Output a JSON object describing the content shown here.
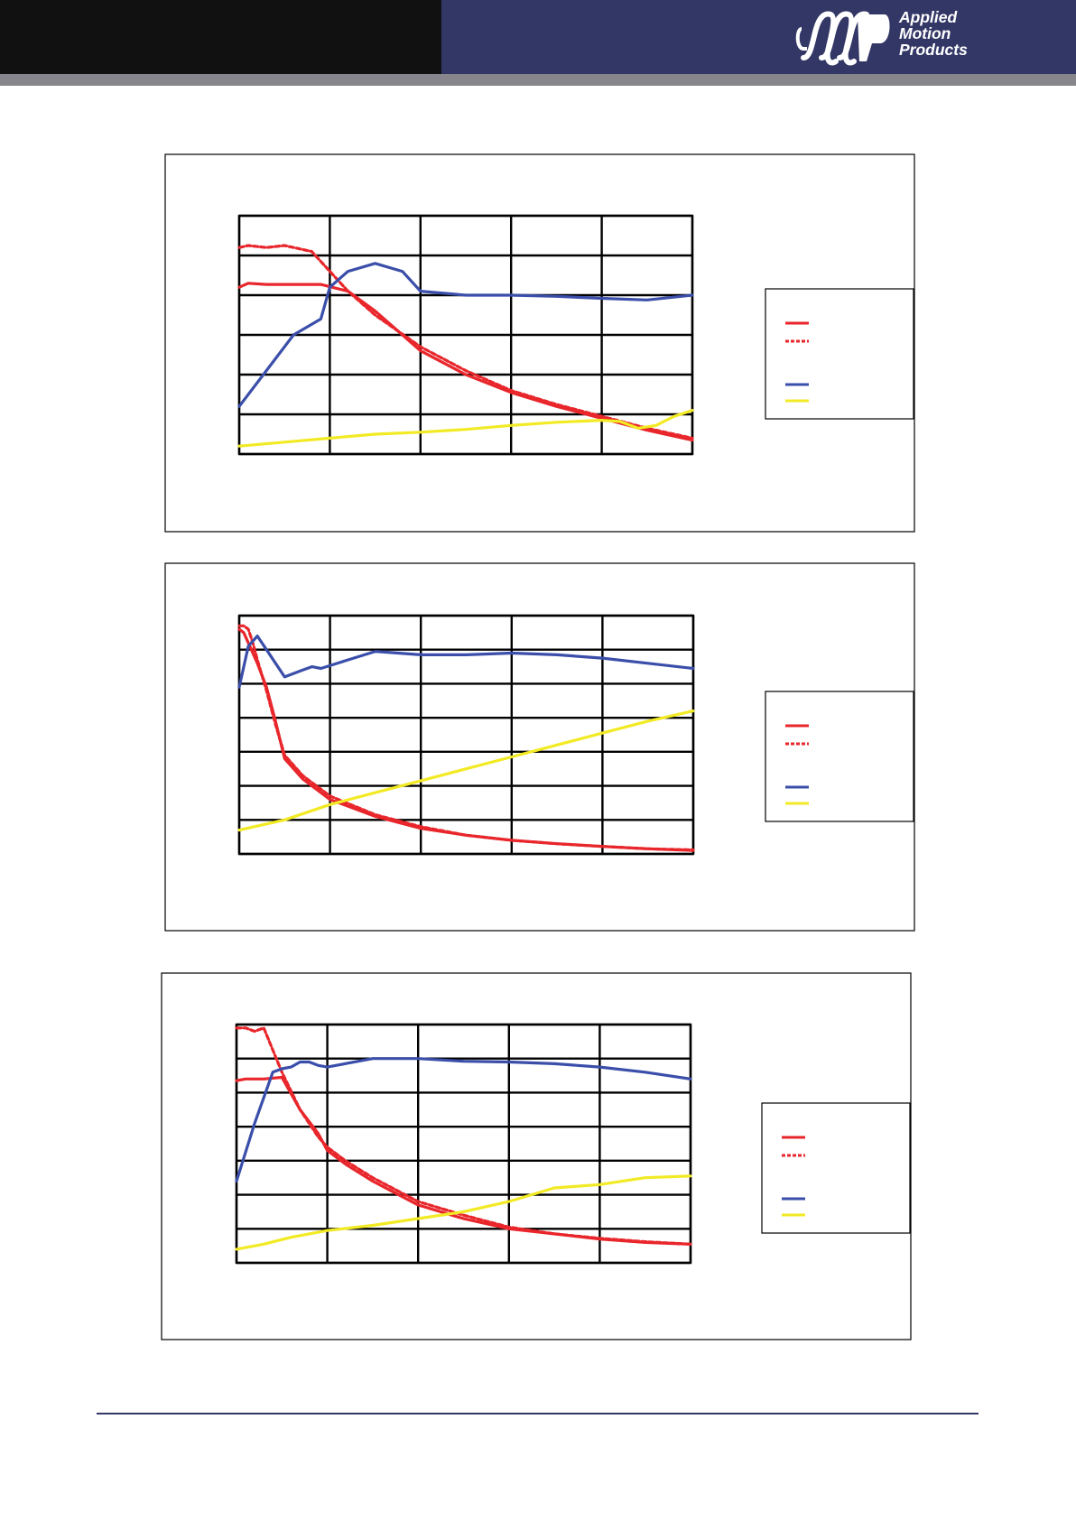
{
  "header": {
    "brand_lines": [
      "Applied",
      "Motion",
      "Products"
    ],
    "colors": {
      "left_band": "#111111",
      "right_band": "#333766",
      "rule": "#86868c"
    }
  },
  "series_styles": [
    {
      "color": "#e8262b",
      "dash": ""
    },
    {
      "color": "#e8262b",
      "dash": "5,3"
    },
    {
      "color": "#3a4eaa",
      "dash": ""
    },
    {
      "color": "#f2ea24",
      "dash": ""
    }
  ],
  "chart_data": [
    {
      "type": "line",
      "grid": true,
      "xlim": [
        0,
        5
      ],
      "ylim": [
        0,
        6
      ],
      "legend_position": "right",
      "series": [
        {
          "x": [
            0,
            0.1,
            0.3,
            0.6,
            0.9,
            1.2,
            1.5,
            2.0,
            2.5,
            3.0,
            3.5,
            4.0,
            4.5,
            5.0
          ],
          "y": [
            4.2,
            4.3,
            4.27,
            4.27,
            4.27,
            4.1,
            3.6,
            2.6,
            2.0,
            1.55,
            1.2,
            0.9,
            0.6,
            0.35
          ]
        },
        {
          "x": [
            0,
            0.1,
            0.3,
            0.5,
            0.8,
            1.0,
            1.2,
            1.5,
            2.0,
            2.5,
            3.0,
            3.5,
            4.0,
            4.5,
            5.0
          ],
          "y": [
            5.2,
            5.25,
            5.2,
            5.25,
            5.1,
            4.6,
            4.1,
            3.5,
            2.7,
            2.1,
            1.6,
            1.25,
            0.95,
            0.65,
            0.4
          ]
        },
        {
          "x": [
            0,
            0.3,
            0.6,
            0.9,
            1.0,
            1.2,
            1.5,
            1.8,
            2.0,
            2.5,
            3.0,
            3.5,
            4.0,
            4.5,
            5.0
          ],
          "y": [
            1.2,
            2.1,
            3.0,
            3.4,
            4.2,
            4.6,
            4.8,
            4.6,
            4.1,
            4.0,
            4.0,
            3.97,
            3.92,
            3.88,
            4.0
          ]
        },
        {
          "x": [
            0,
            0.5,
            1.0,
            1.5,
            2.0,
            2.5,
            3.0,
            3.5,
            4.0,
            4.2,
            4.4,
            4.6,
            4.8,
            5.0
          ],
          "y": [
            0.2,
            0.3,
            0.4,
            0.5,
            0.55,
            0.62,
            0.72,
            0.8,
            0.85,
            0.82,
            0.65,
            0.72,
            0.95,
            1.1
          ]
        }
      ]
    },
    {
      "type": "line",
      "grid": true,
      "xlim": [
        0,
        5
      ],
      "ylim": [
        0,
        7
      ],
      "legend_position": "right",
      "series": [
        {
          "x": [
            0,
            0.05,
            0.1,
            0.15,
            0.2,
            0.3,
            0.4,
            0.5,
            0.7,
            1.0,
            1.5,
            2.0,
            2.5,
            3.0,
            3.5,
            4.0,
            4.5,
            5.0
          ],
          "y": [
            6.6,
            6.5,
            6.2,
            5.9,
            5.6,
            4.9,
            3.9,
            2.8,
            2.2,
            1.6,
            1.1,
            0.75,
            0.55,
            0.4,
            0.3,
            0.22,
            0.15,
            0.1
          ]
        },
        {
          "x": [
            0,
            0.05,
            0.1,
            0.15,
            0.2,
            0.3,
            0.4,
            0.5,
            0.7,
            1.0,
            1.5,
            2.0,
            2.5,
            3.0,
            3.5,
            4.0,
            4.5,
            5.0
          ],
          "y": [
            6.7,
            6.7,
            6.6,
            6.2,
            5.7,
            4.8,
            3.8,
            2.9,
            2.3,
            1.7,
            1.15,
            0.8,
            0.55,
            0.4,
            0.3,
            0.22,
            0.15,
            0.12
          ]
        },
        {
          "x": [
            0,
            0.1,
            0.2,
            0.3,
            0.5,
            0.7,
            0.8,
            0.9,
            1.2,
            1.5,
            2.0,
            2.5,
            3.0,
            3.5,
            4.0,
            4.5,
            5.0
          ],
          "y": [
            4.9,
            6.1,
            6.4,
            6.0,
            5.2,
            5.4,
            5.5,
            5.45,
            5.7,
            5.95,
            5.85,
            5.85,
            5.9,
            5.85,
            5.75,
            5.6,
            5.45
          ]
        },
        {
          "x": [
            0,
            0.5,
            1.0,
            1.5,
            2.0,
            2.5,
            3.0,
            3.5,
            4.0,
            4.5,
            5.0
          ],
          "y": [
            0.7,
            1.0,
            1.45,
            1.8,
            2.15,
            2.5,
            2.85,
            3.2,
            3.55,
            3.9,
            4.2
          ]
        }
      ]
    },
    {
      "type": "line",
      "grid": true,
      "xlim": [
        0,
        5
      ],
      "ylim": [
        0,
        7
      ],
      "legend_position": "right",
      "series": [
        {
          "x": [
            0,
            0.1,
            0.3,
            0.5,
            0.7,
            0.9,
            1.0,
            1.2,
            1.5,
            2.0,
            2.5,
            3.0,
            3.5,
            4.0,
            4.5,
            5.0
          ],
          "y": [
            5.35,
            5.4,
            5.4,
            5.45,
            4.5,
            3.8,
            3.3,
            2.9,
            2.4,
            1.7,
            1.3,
            1.0,
            0.85,
            0.7,
            0.6,
            0.55
          ]
        },
        {
          "x": [
            0,
            0.1,
            0.2,
            0.3,
            0.5,
            0.7,
            0.9,
            1.0,
            1.2,
            1.5,
            2.0,
            2.5,
            3.0,
            3.5,
            4.0,
            4.5,
            5.0
          ],
          "y": [
            6.9,
            6.9,
            6.8,
            6.9,
            5.6,
            4.5,
            3.7,
            3.4,
            3.0,
            2.5,
            1.8,
            1.4,
            1.05,
            0.85,
            0.72,
            0.62,
            0.55
          ]
        },
        {
          "x": [
            0,
            0.2,
            0.4,
            0.5,
            0.6,
            0.7,
            0.8,
            0.9,
            1.0,
            1.5,
            2.0,
            2.5,
            3.0,
            3.5,
            4.0,
            4.5,
            5.0
          ],
          "y": [
            2.4,
            4.1,
            5.6,
            5.7,
            5.75,
            5.9,
            5.9,
            5.8,
            5.75,
            6.0,
            6.0,
            5.92,
            5.9,
            5.85,
            5.75,
            5.6,
            5.4
          ]
        },
        {
          "x": [
            0,
            0.3,
            0.6,
            1.0,
            1.5,
            2.0,
            2.5,
            3.0,
            3.5,
            4.0,
            4.5,
            5.0
          ],
          "y": [
            0.4,
            0.55,
            0.75,
            0.95,
            1.1,
            1.3,
            1.5,
            1.8,
            2.2,
            2.3,
            2.5,
            2.55
          ]
        }
      ]
    }
  ]
}
